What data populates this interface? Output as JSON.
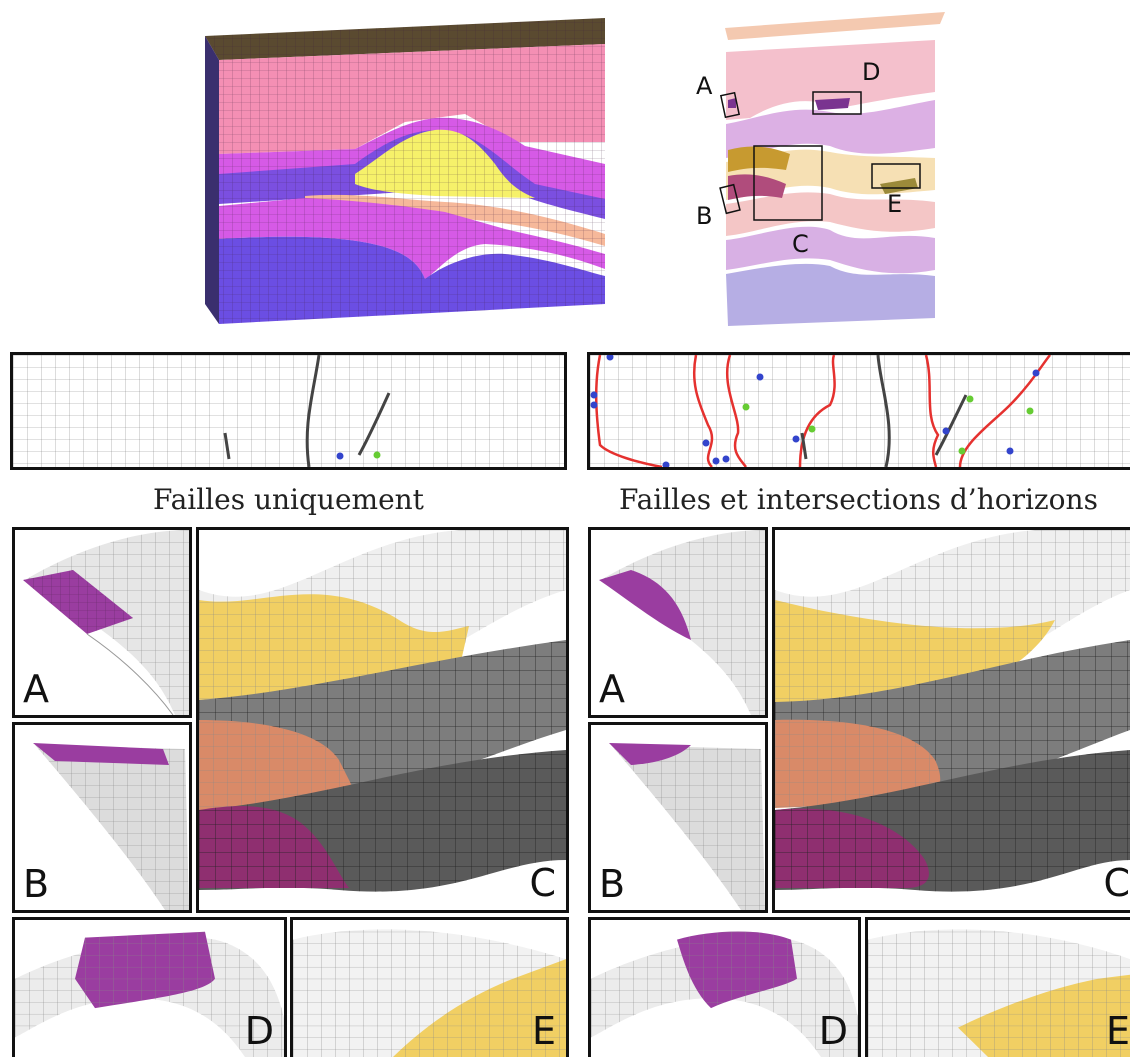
{
  "overview": {
    "labels": {
      "a": "A",
      "b": "B",
      "c": "C",
      "d": "D",
      "e": "E"
    }
  },
  "captions": {
    "left": "Failles uniquement",
    "right": "Failles et intersections d’horizons"
  },
  "panels": {
    "left": {
      "a": "A",
      "b": "B",
      "c": "C",
      "d": "D",
      "e": "E"
    },
    "right": {
      "a": "A",
      "b": "B",
      "c": "C",
      "d": "D",
      "e": "E"
    }
  },
  "colors": {
    "pink": "#f48fb4",
    "magenta": "#d65ae6",
    "violet": "#7b4fe0",
    "yellow": "#f6f16a",
    "peach": "#f6b89a",
    "purple_surface": "#9a3da0",
    "gold_surface": "#f1cf63",
    "orange_surface": "#d98a68",
    "fault": "#444444",
    "horizon_line": "#e5312f",
    "blue_point": "#3344cc",
    "green_point": "#66cc33"
  }
}
